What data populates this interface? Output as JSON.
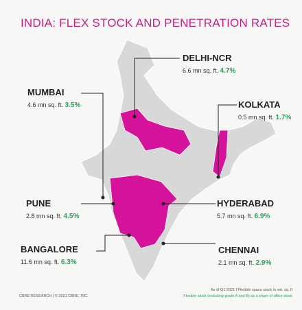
{
  "header": {
    "title": "INDIA: FLEX STOCK AND PENETRATION RATES"
  },
  "cities": [
    {
      "name": "DELHI-NCR",
      "stock": "6.6 mn sq. ft.",
      "rate": "4.7%"
    },
    {
      "name": "MUMBAI",
      "stock": "4.6 mn sq. ft.",
      "rate": "3.5%"
    },
    {
      "name": "KOLKATA",
      "stock": "0.5 mn sq. ft.",
      "rate": "1.7%"
    },
    {
      "name": "PUNE",
      "stock": "2.8 mn sq. ft.",
      "rate": "4.5%"
    },
    {
      "name": "HYDERABAD",
      "stock": "5.7 mn sq. ft.",
      "rate": "6.9%"
    },
    {
      "name": "BANGALORE",
      "stock": "11.6 mn sq. ft.",
      "rate": "6.3%"
    },
    {
      "name": "CHENNAI",
      "stock": "2.1 mn sq. ft.",
      "rate": "2.9%"
    }
  ],
  "footer": {
    "source": "CBRE RESEARCH | © 2021 CBRE, INC.",
    "note": "As of Q1 2021 | Flexible space stock in mn. sq. ft",
    "note_green": "Flexible stock (including grade A and B) as a share of office stock"
  }
}
